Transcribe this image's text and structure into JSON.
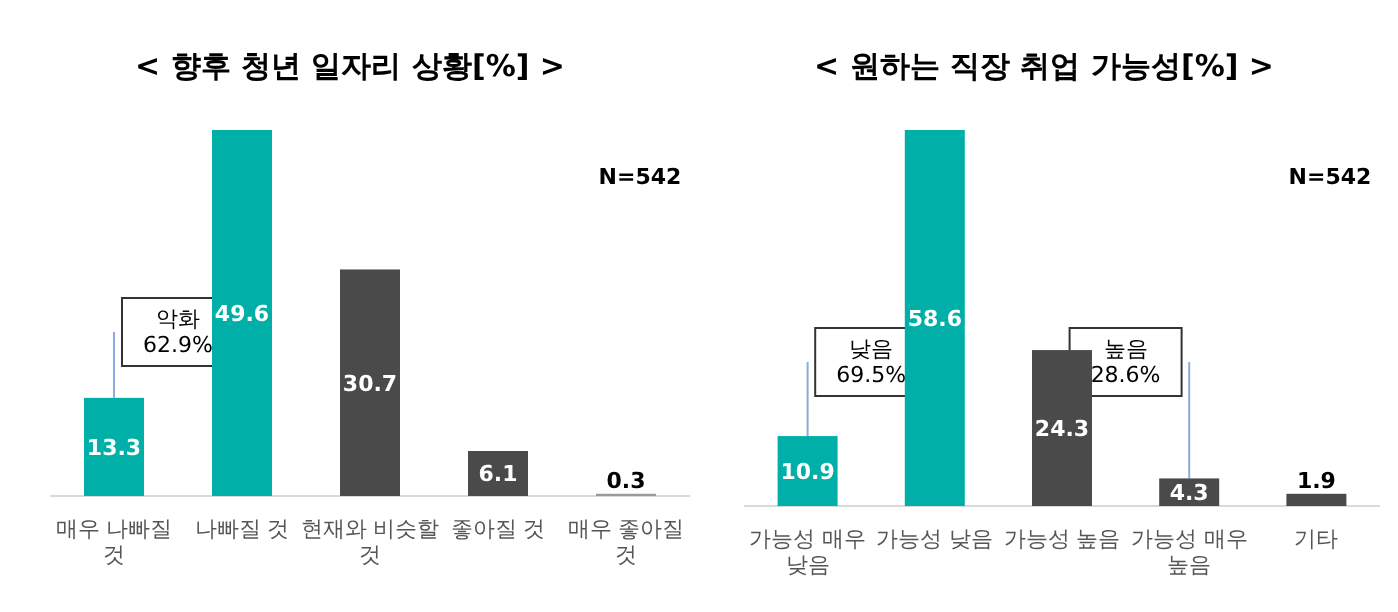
{
  "chart_data": [
    {
      "type": "bar",
      "title": "< 향후 청년 일자리 상황[%] >",
      "categories": [
        "매우 나빠질 것",
        "나빠질 것",
        "현재와 비슷할 것",
        "좋아질 것",
        "매우 좋아질 것"
      ],
      "values": [
        13.3,
        49.6,
        30.7,
        6.1,
        0.3
      ],
      "colors": [
        "#00b0a8",
        "#00b0a8",
        "#4a4a4a",
        "#4a4a4a",
        "#9a9a9a"
      ],
      "data_labels": true,
      "annotations": [
        "N=542",
        "악화\n62.9%"
      ]
    },
    {
      "type": "bar",
      "title": "< 원하는 직장 취업 가능성[%] >",
      "categories": [
        "가능성 매우 낮음",
        "가능성 낮음",
        "가능성 높음",
        "가능성 매우 높음",
        "기타"
      ],
      "values": [
        10.9,
        58.6,
        24.3,
        4.3,
        1.9
      ],
      "colors": [
        "#00b0a8",
        "#00b0a8",
        "#4a4a4a",
        "#4a4a4a",
        "#4a4a4a"
      ],
      "data_labels": true,
      "annotations": [
        "N=542",
        "낮음\n69.5%",
        "높음\n28.6%"
      ]
    }
  ]
}
